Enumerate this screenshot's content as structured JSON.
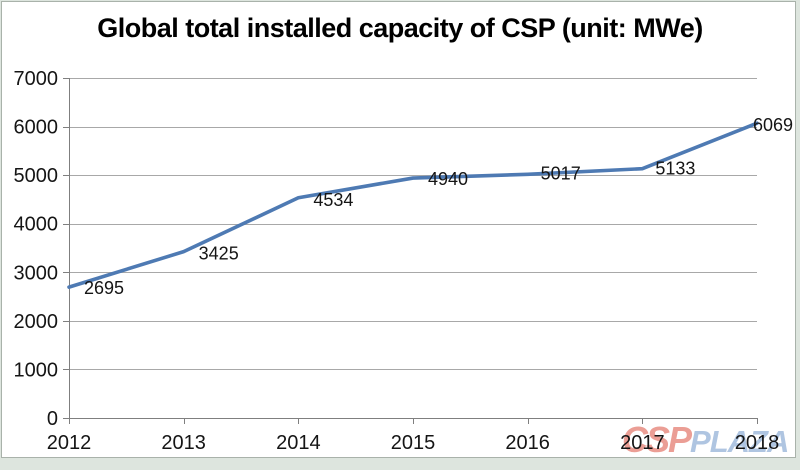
{
  "chart_data": {
    "type": "line",
    "title": "Global total installed capacity of CSP (unit: MWe)",
    "categories": [
      "2012",
      "2013",
      "2014",
      "2015",
      "2016",
      "2017",
      "2018"
    ],
    "values": [
      2695,
      3425,
      4534,
      4940,
      5017,
      5133,
      6069
    ],
    "xlabel": "",
    "ylabel": "",
    "ylim": [
      0,
      7000
    ],
    "yticks": [
      0,
      1000,
      2000,
      3000,
      4000,
      5000,
      6000,
      7000
    ],
    "grid": true,
    "legend": "none",
    "data_labels_visible": true,
    "line_color": "#4e7ab3",
    "gridline_color": "#a8a8a8",
    "axis_color": "#7f7f7f",
    "text_color": "#151515"
  },
  "watermark": {
    "csp": "CSP",
    "plaza": "PLAZA",
    "csp_color": "#df5f50",
    "plaza_color": "#7fa3d0"
  }
}
